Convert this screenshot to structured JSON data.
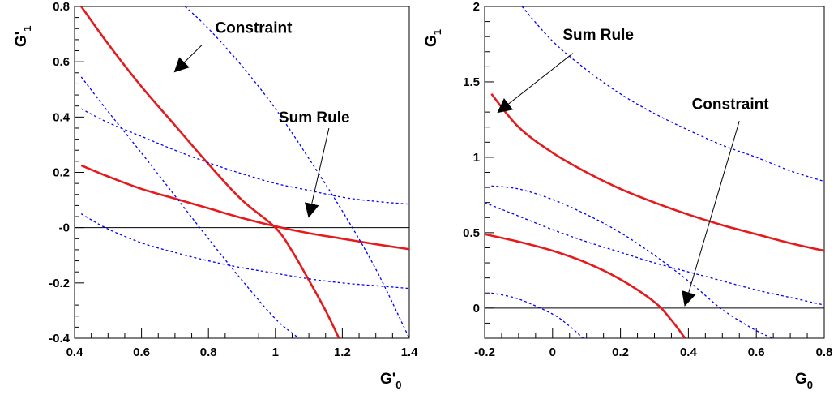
{
  "chart_data": [
    {
      "type": "line",
      "xlabel": "G'",
      "xlabel_sub": "0",
      "ylabel": "G'",
      "ylabel_sub": "1",
      "xlim": [
        0.4,
        1.4
      ],
      "ylim": [
        -0.4,
        0.8
      ],
      "xticks": [
        0.4,
        0.6,
        0.8,
        1,
        1.2,
        1.4
      ],
      "xtick_labels": [
        "0.4",
        "0.6",
        "0.8",
        "1",
        "1.2",
        "1.4"
      ],
      "yticks": [
        -0.4,
        -0.2,
        0,
        0.2,
        0.4,
        0.6,
        0.8
      ],
      "ytick_labels": [
        "-0.4",
        "-0.2",
        "-0",
        "0.2",
        "0.4",
        "0.6",
        "0.8"
      ],
      "grid": false,
      "reference_line_y": 0,
      "series": [
        {
          "style": "solid",
          "color": "#e41a1c",
          "x": [
            0.42,
            0.5,
            0.6,
            0.7,
            0.8,
            0.9,
            1.0,
            1.05,
            1.1,
            1.15,
            1.19
          ],
          "y": [
            0.8,
            0.665,
            0.51,
            0.37,
            0.23,
            0.1,
            0.0,
            -0.085,
            -0.19,
            -0.3,
            -0.4
          ]
        },
        {
          "style": "solid",
          "color": "#e41a1c",
          "x": [
            0.42,
            0.5,
            0.6,
            0.7,
            0.8,
            0.9,
            1.0,
            1.1,
            1.2,
            1.3,
            1.4
          ],
          "y": [
            0.225,
            0.185,
            0.14,
            0.105,
            0.07,
            0.035,
            0.005,
            -0.02,
            -0.04,
            -0.06,
            -0.078
          ]
        },
        {
          "style": "dashed",
          "color": "#0000ff",
          "x": [
            0.73,
            0.8,
            0.9,
            1.0,
            1.1,
            1.2,
            1.3,
            1.4
          ],
          "y": [
            0.8,
            0.72,
            0.585,
            0.43,
            0.25,
            0.06,
            -0.15,
            -0.4
          ]
        },
        {
          "style": "dashed",
          "color": "#0000ff",
          "x": [
            0.42,
            0.5,
            0.6,
            0.7,
            0.8,
            0.9,
            1.0,
            1.07
          ],
          "y": [
            0.545,
            0.42,
            0.27,
            0.115,
            -0.04,
            -0.19,
            -0.33,
            -0.4
          ]
        },
        {
          "style": "dashed",
          "color": "#0000ff",
          "x": [
            0.42,
            0.5,
            0.6,
            0.7,
            0.8,
            0.9,
            1.0,
            1.1,
            1.2,
            1.3,
            1.4
          ],
          "y": [
            0.43,
            0.38,
            0.33,
            0.28,
            0.235,
            0.195,
            0.16,
            0.135,
            0.11,
            0.095,
            0.085
          ]
        },
        {
          "style": "dashed",
          "color": "#0000ff",
          "x": [
            0.42,
            0.5,
            0.6,
            0.7,
            0.8,
            0.9,
            1.0,
            1.1,
            1.2,
            1.3,
            1.4
          ],
          "y": [
            0.05,
            -0.005,
            -0.055,
            -0.09,
            -0.12,
            -0.145,
            -0.165,
            -0.185,
            -0.2,
            -0.21,
            -0.22
          ]
        }
      ],
      "annotations": [
        {
          "text": "Constraint",
          "tx": 0.82,
          "ty": 0.705,
          "ax1": 0.78,
          "ay1": 0.66,
          "ax2": 0.7,
          "ay2": 0.565
        },
        {
          "text": "Sum Rule",
          "tx": 1.01,
          "ty": 0.38,
          "ax1": 1.16,
          "ay1": 0.36,
          "ax2": 1.1,
          "ay2": 0.04
        }
      ]
    },
    {
      "type": "line",
      "xlabel": "G",
      "xlabel_sub": "0",
      "ylabel": "G",
      "ylabel_sub": "1",
      "xlim": [
        -0.2,
        0.8
      ],
      "ylim": [
        -0.2,
        2.0
      ],
      "xticks": [
        -0.2,
        0,
        0.2,
        0.4,
        0.6,
        0.8
      ],
      "xtick_labels": [
        "-0.2",
        "0",
        "0.2",
        "0.4",
        "0.6",
        "0.8"
      ],
      "yticks": [
        0,
        0.5,
        1,
        1.5,
        2
      ],
      "ytick_labels": [
        "0",
        "0.5",
        "1",
        "1.5",
        "2"
      ],
      "grid": false,
      "reference_line_y": 0,
      "series": [
        {
          "style": "solid",
          "color": "#e41a1c",
          "x": [
            -0.18,
            -0.1,
            0.0,
            0.1,
            0.2,
            0.3,
            0.4,
            0.5,
            0.6,
            0.7,
            0.8
          ],
          "y": [
            1.42,
            1.2,
            1.03,
            0.9,
            0.79,
            0.7,
            0.62,
            0.55,
            0.49,
            0.43,
            0.38
          ]
        },
        {
          "style": "solid",
          "color": "#e41a1c",
          "x": [
            -0.2,
            -0.1,
            0.0,
            0.1,
            0.2,
            0.3,
            0.35,
            0.39
          ],
          "y": [
            0.49,
            0.44,
            0.38,
            0.3,
            0.19,
            0.04,
            -0.08,
            -0.2
          ]
        },
        {
          "style": "dashed",
          "color": "#0000ff",
          "x": [
            -0.09,
            0.0,
            0.1,
            0.2,
            0.3,
            0.4,
            0.5,
            0.6,
            0.7,
            0.8
          ],
          "y": [
            2.0,
            1.77,
            1.58,
            1.42,
            1.29,
            1.18,
            1.08,
            1.0,
            0.91,
            0.84
          ]
        },
        {
          "style": "dashed",
          "color": "#0000ff",
          "x": [
            -0.18,
            -0.1,
            0.0,
            0.1,
            0.2,
            0.3,
            0.4,
            0.5,
            0.6,
            0.65
          ],
          "y": [
            0.81,
            0.79,
            0.72,
            0.62,
            0.5,
            0.35,
            0.18,
            -0.01,
            -0.15,
            -0.2
          ]
        },
        {
          "style": "dashed",
          "color": "#0000ff",
          "x": [
            -0.2,
            -0.1,
            0.0,
            0.1,
            0.2,
            0.3,
            0.4,
            0.5,
            0.6,
            0.7,
            0.8
          ],
          "y": [
            0.7,
            0.61,
            0.52,
            0.44,
            0.37,
            0.3,
            0.24,
            0.18,
            0.12,
            0.07,
            0.02
          ]
        },
        {
          "style": "dashed",
          "color": "#0000ff",
          "x": [
            -0.18,
            -0.1,
            0.0,
            0.05,
            0.09
          ],
          "y": [
            0.1,
            0.06,
            -0.04,
            -0.12,
            -0.2
          ]
        }
      ],
      "annotations": [
        {
          "text": "Sum Rule",
          "tx": 0.03,
          "ty": 1.78,
          "ax1": 0.06,
          "ay1": 1.69,
          "ax2": -0.16,
          "ay2": 1.3
        },
        {
          "text": "Constraint",
          "tx": 0.41,
          "ty": 1.32,
          "ax1": 0.55,
          "ay1": 1.24,
          "ax2": 0.39,
          "ay2": 0.02
        }
      ]
    }
  ]
}
